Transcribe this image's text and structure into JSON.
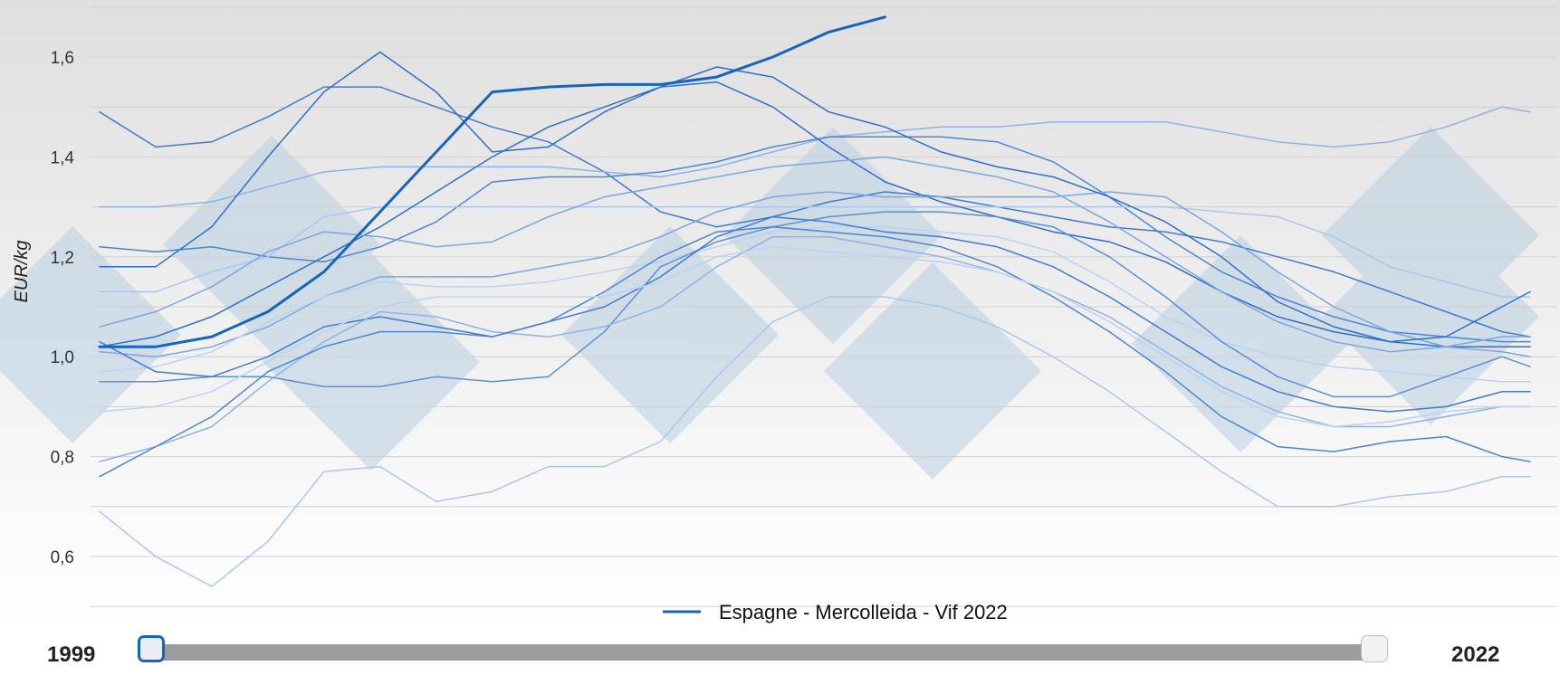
{
  "chart_data": {
    "type": "line",
    "ylabel": "EUR/kg",
    "xlabel": "",
    "ylim": [
      0.55,
      1.69
    ],
    "yticks": [
      0.6,
      0.8,
      1.0,
      1.2,
      1.4,
      1.6
    ],
    "ytick_labels": [
      "0,6",
      "0,8",
      "1,0",
      "1,2",
      "1,4",
      "1,6"
    ],
    "x_weeks": [
      1,
      3,
      5,
      7,
      9,
      11,
      13,
      15,
      17,
      19,
      21,
      23,
      25,
      27,
      29,
      31,
      33,
      35,
      37,
      39,
      41,
      43,
      45,
      47,
      49,
      51,
      52
    ],
    "grid": true,
    "legend": {
      "position": "bottom-center",
      "entries": [
        "Espagne - Mercolleida - Vif 2022"
      ]
    },
    "highlight_color": "#1565c0",
    "series": [
      {
        "name": "Espagne - Mercolleida - Vif 2022",
        "highlight": true,
        "values": [
          1.02,
          1.02,
          1.04,
          1.09,
          1.17,
          1.29,
          1.41,
          1.53,
          1.54,
          1.545,
          1.545,
          1.56,
          1.6,
          1.65,
          1.68
        ]
      },
      {
        "values": [
          1.49,
          1.42,
          1.43,
          1.48,
          1.54,
          1.54,
          1.5,
          1.46,
          1.43,
          1.37,
          1.29,
          1.26,
          1.28,
          1.31,
          1.33,
          1.32,
          1.3,
          1.28,
          1.26,
          1.25,
          1.23,
          1.2,
          1.17,
          1.13,
          1.09,
          1.05,
          1.04
        ]
      },
      {
        "values": [
          1.3,
          1.3,
          1.31,
          1.34,
          1.37,
          1.38,
          1.38,
          1.38,
          1.38,
          1.37,
          1.36,
          1.38,
          1.41,
          1.44,
          1.45,
          1.46,
          1.46,
          1.47,
          1.47,
          1.47,
          1.45,
          1.43,
          1.42,
          1.43,
          1.46,
          1.5,
          1.49
        ]
      },
      {
        "values": [
          1.22,
          1.21,
          1.22,
          1.2,
          1.19,
          1.22,
          1.27,
          1.35,
          1.36,
          1.36,
          1.37,
          1.39,
          1.42,
          1.44,
          1.44,
          1.44,
          1.43,
          1.39,
          1.32,
          1.24,
          1.17,
          1.12,
          1.08,
          1.05,
          1.04,
          1.03,
          1.03
        ]
      },
      {
        "values": [
          1.13,
          1.13,
          1.17,
          1.2,
          1.28,
          1.3,
          1.3,
          1.3,
          1.3,
          1.3,
          1.3,
          1.3,
          1.3,
          1.3,
          1.3,
          1.3,
          1.3,
          1.3,
          1.3,
          1.3,
          1.29,
          1.28,
          1.24,
          1.18,
          1.15,
          1.12,
          1.12
        ]
      },
      {
        "values": [
          1.02,
          1.04,
          1.08,
          1.14,
          1.2,
          1.26,
          1.33,
          1.4,
          1.46,
          1.5,
          1.54,
          1.55,
          1.5,
          1.42,
          1.35,
          1.31,
          1.28,
          1.25,
          1.23,
          1.19,
          1.13,
          1.08,
          1.05,
          1.03,
          1.02,
          1.02,
          1.02
        ]
      },
      {
        "values": [
          1.01,
          1.0,
          1.02,
          1.06,
          1.12,
          1.16,
          1.16,
          1.16,
          1.18,
          1.2,
          1.24,
          1.29,
          1.32,
          1.33,
          1.32,
          1.32,
          1.32,
          1.32,
          1.33,
          1.32,
          1.25,
          1.17,
          1.1,
          1.05,
          1.02,
          1.01,
          1.0
        ]
      },
      {
        "values": [
          0.97,
          0.98,
          1.01,
          1.07,
          1.12,
          1.15,
          1.14,
          1.14,
          1.15,
          1.17,
          1.19,
          1.22,
          1.25,
          1.26,
          1.26,
          1.25,
          1.24,
          1.21,
          1.15,
          1.08,
          1.03,
          1.0,
          0.98,
          0.97,
          0.96,
          0.95,
          0.95
        ]
      },
      {
        "values": [
          0.95,
          0.95,
          0.96,
          0.96,
          0.94,
          0.94,
          0.96,
          0.95,
          0.96,
          1.05,
          1.18,
          1.23,
          1.26,
          1.28,
          1.29,
          1.29,
          1.28,
          1.26,
          1.2,
          1.12,
          1.03,
          0.96,
          0.92,
          0.92,
          0.96,
          1.0,
          0.98
        ]
      },
      {
        "values": [
          1.03,
          0.97,
          0.96,
          1.0,
          1.06,
          1.08,
          1.06,
          1.04,
          1.07,
          1.1,
          1.16,
          1.24,
          1.28,
          1.27,
          1.25,
          1.24,
          1.22,
          1.18,
          1.12,
          1.05,
          0.98,
          0.93,
          0.9,
          0.89,
          0.9,
          0.93,
          0.93
        ]
      },
      {
        "values": [
          0.79,
          0.82,
          0.86,
          0.95,
          1.03,
          1.09,
          1.08,
          1.05,
          1.04,
          1.06,
          1.1,
          1.18,
          1.24,
          1.24,
          1.22,
          1.2,
          1.17,
          1.13,
          1.08,
          1.01,
          0.94,
          0.89,
          0.86,
          0.86,
          0.88,
          0.9,
          0.9
        ]
      },
      {
        "values": [
          0.76,
          0.82,
          0.88,
          0.97,
          1.02,
          1.05,
          1.05,
          1.04,
          1.07,
          1.13,
          1.2,
          1.25,
          1.26,
          1.25,
          1.24,
          1.22,
          1.18,
          1.12,
          1.05,
          0.97,
          0.88,
          0.82,
          0.81,
          0.83,
          0.84,
          0.8,
          0.79
        ]
      },
      {
        "values": [
          0.69,
          0.6,
          0.54,
          0.63,
          0.77,
          0.78,
          0.71,
          0.73,
          0.78,
          0.78,
          0.83,
          0.96,
          1.07,
          1.12,
          1.12,
          1.1,
          1.06,
          1.0,
          0.93,
          0.85,
          0.77,
          0.7,
          0.7,
          0.72,
          0.73,
          0.76,
          0.76
        ]
      },
      {
        "values": [
          1.18,
          1.18,
          1.26,
          1.4,
          1.53,
          1.61,
          1.53,
          1.41,
          1.42,
          1.49,
          1.54,
          1.58,
          1.56,
          1.49,
          1.46,
          1.41,
          1.38,
          1.36,
          1.32,
          1.27,
          1.2,
          1.11,
          1.06,
          1.03,
          1.04,
          1.1,
          1.13
        ]
      },
      {
        "values": [
          1.06,
          1.09,
          1.14,
          1.21,
          1.25,
          1.24,
          1.22,
          1.23,
          1.28,
          1.32,
          1.34,
          1.36,
          1.38,
          1.39,
          1.4,
          1.38,
          1.36,
          1.33,
          1.27,
          1.2,
          1.13,
          1.07,
          1.03,
          1.01,
          1.02,
          1.04,
          1.04
        ]
      },
      {
        "values": [
          0.89,
          0.9,
          0.93,
          0.99,
          1.05,
          1.1,
          1.12,
          1.12,
          1.12,
          1.12,
          1.15,
          1.2,
          1.22,
          1.21,
          1.2,
          1.19,
          1.17,
          1.13,
          1.07,
          1.0,
          0.93,
          0.88,
          0.86,
          0.87,
          0.89,
          0.9,
          0.9
        ]
      }
    ]
  },
  "slider": {
    "start_label": "1999",
    "end_label": "2022",
    "start_fraction": 0.0,
    "end_fraction": 1.0
  }
}
